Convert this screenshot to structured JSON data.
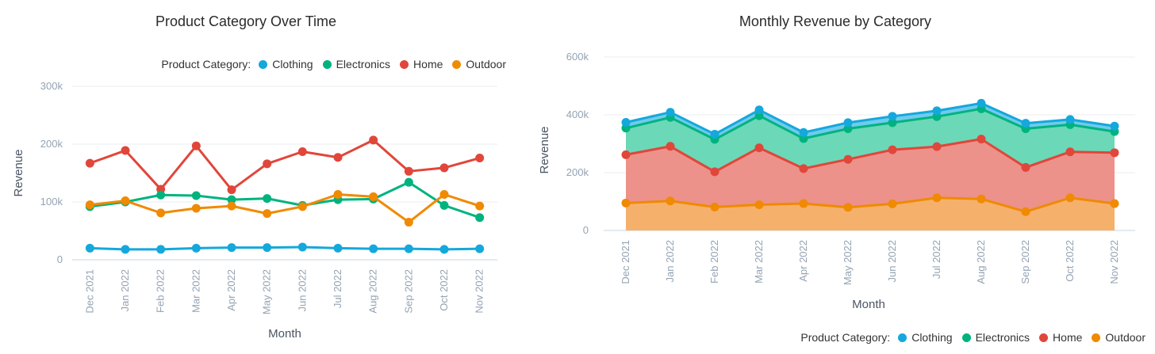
{
  "chart_data": [
    {
      "type": "line",
      "title": "Product Category Over Time",
      "xlabel": "Month",
      "ylabel": "Revenue",
      "ylim": [
        0,
        300000
      ],
      "yticks": [
        "0",
        "100k",
        "200k",
        "300k"
      ],
      "grid": true,
      "legend_position": "top-right",
      "legend_title": "Product Category:",
      "categories": [
        "Dec 2021",
        "Jan 2022",
        "Feb 2022",
        "Mar 2022",
        "Apr 2022",
        "May 2022",
        "Jun 2022",
        "Jul 2022",
        "Aug 2022",
        "Sep 2022",
        "Oct 2022",
        "Nov 2022"
      ],
      "series": [
        {
          "name": "Clothing",
          "color": "#14a8dc",
          "values": [
            20000,
            18000,
            18000,
            20000,
            21000,
            21000,
            22000,
            20000,
            19000,
            19000,
            18000,
            19000
          ]
        },
        {
          "name": "Electronics",
          "color": "#00b37e",
          "values": [
            92000,
            100000,
            112000,
            111000,
            104000,
            106000,
            94000,
            104000,
            105000,
            134000,
            94000,
            73000
          ]
        },
        {
          "name": "Home",
          "color": "#e1463a",
          "values": [
            167000,
            189000,
            122000,
            197000,
            121000,
            166000,
            187000,
            177000,
            207000,
            153000,
            159000,
            176000
          ]
        },
        {
          "name": "Outdoor",
          "color": "#f08a00",
          "values": [
            95000,
            102000,
            81000,
            89000,
            93000,
            80000,
            92000,
            113000,
            109000,
            65000,
            113000,
            93000
          ]
        }
      ]
    },
    {
      "type": "area",
      "stacked": true,
      "title": "Monthly Revenue by Category",
      "xlabel": "Month",
      "ylabel": "Revenue",
      "ylim": [
        0,
        600000
      ],
      "yticks": [
        "0",
        "200k",
        "400k",
        "600k"
      ],
      "grid": true,
      "legend_position": "bottom-right",
      "legend_title": "Product Category:",
      "categories": [
        "Dec 2021",
        "Jan 2022",
        "Feb 2022",
        "Mar 2022",
        "Apr 2022",
        "May 2022",
        "Jun 2022",
        "Jul 2022",
        "Aug 2022",
        "Sep 2022",
        "Oct 2022",
        "Nov 2022"
      ],
      "series": [
        {
          "name": "Outdoor",
          "color": "#f08a00",
          "fill": "#f5b06c",
          "values": [
            95000,
            102000,
            81000,
            89000,
            93000,
            80000,
            92000,
            113000,
            109000,
            65000,
            113000,
            93000
          ]
        },
        {
          "name": "Home",
          "color": "#e1463a",
          "fill": "#ec928a",
          "values": [
            167000,
            189000,
            122000,
            197000,
            121000,
            166000,
            187000,
            177000,
            207000,
            153000,
            159000,
            176000
          ]
        },
        {
          "name": "Electronics",
          "color": "#00b37e",
          "fill": "#6bd8b8",
          "values": [
            92000,
            100000,
            112000,
            111000,
            104000,
            106000,
            94000,
            104000,
            105000,
            134000,
            94000,
            73000
          ]
        },
        {
          "name": "Clothing",
          "color": "#14a8dc",
          "fill": "#6fcbee",
          "values": [
            20000,
            18000,
            18000,
            20000,
            21000,
            21000,
            22000,
            20000,
            19000,
            19000,
            18000,
            19000
          ]
        }
      ],
      "legend_order": [
        "Clothing",
        "Electronics",
        "Home",
        "Outdoor"
      ]
    }
  ]
}
